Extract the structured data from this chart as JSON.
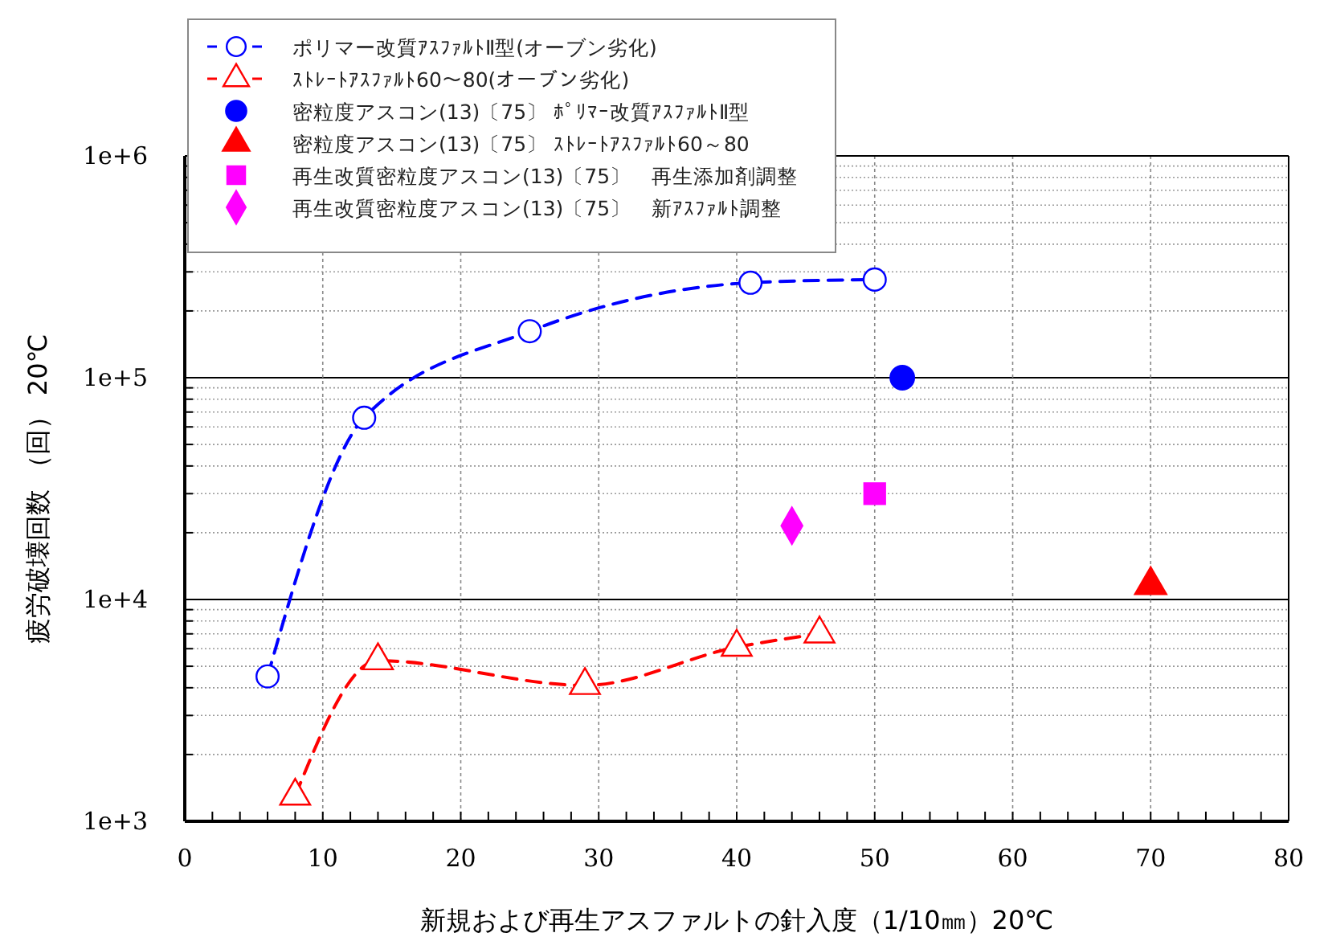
{
  "chart_data": {
    "type": "scatter",
    "xlabel": "新規および再生アスファルトの針入度（1/10㎜）20℃",
    "ylabel": "疲労破壊回数 （回） 20℃",
    "log": "y",
    "grid": true,
    "legend": "top left",
    "xlim": [
      0,
      80
    ],
    "xticks": [
      0,
      {
        "value": 2,
        "label": null
      },
      {
        "value": 4,
        "label": null
      },
      {
        "value": 6,
        "label": null
      },
      {
        "value": 8,
        "label": null
      },
      10,
      {
        "value": 12,
        "label": null
      },
      {
        "value": 14,
        "label": null
      },
      {
        "value": 16,
        "label": null
      },
      {
        "value": 18,
        "label": null
      },
      20,
      {
        "value": 22,
        "label": null
      },
      {
        "value": 24,
        "label": null
      },
      {
        "value": 26,
        "label": null
      },
      {
        "value": 28,
        "label": null
      },
      30,
      {
        "value": 32,
        "label": null
      },
      {
        "value": 34,
        "label": null
      },
      {
        "value": 36,
        "label": null
      },
      {
        "value": 38,
        "label": null
      },
      40,
      {
        "value": 42,
        "label": null
      },
      {
        "value": 44,
        "label": null
      },
      {
        "value": 46,
        "label": null
      },
      {
        "value": 48,
        "label": null
      },
      50,
      {
        "value": 52,
        "label": null
      },
      {
        "value": 54,
        "label": null
      },
      {
        "value": 56,
        "label": null
      },
      {
        "value": 58,
        "label": null
      },
      60,
      {
        "value": 62,
        "label": null
      },
      {
        "value": 64,
        "label": null
      },
      {
        "value": 66,
        "label": null
      },
      {
        "value": 68,
        "label": null
      },
      70,
      {
        "value": 72,
        "label": null
      },
      {
        "value": 74,
        "label": null
      },
      {
        "value": 76,
        "label": null
      },
      {
        "value": 78,
        "label": null
      },
      80
    ],
    "ylim": [
      1000,
      1000000
    ],
    "yticks": [
      {
        "value": 1000,
        "label": "1e+3"
      },
      {
        "value": 2000,
        "label": null
      },
      {
        "value": 3000,
        "label": null
      },
      {
        "value": 4000,
        "label": null
      },
      {
        "value": 5000,
        "label": null
      },
      {
        "value": 6000,
        "label": null
      },
      {
        "value": 7000,
        "label": null
      },
      {
        "value": 8000,
        "label": null
      },
      {
        "value": 9000,
        "label": null
      },
      {
        "value": 10000,
        "label": "1e+4"
      },
      {
        "value": 20000,
        "label": null
      },
      {
        "value": 30000,
        "label": null
      },
      {
        "value": 40000,
        "label": null
      },
      {
        "value": 50000,
        "label": null
      },
      {
        "value": 60000,
        "label": null
      },
      {
        "value": 70000,
        "label": null
      },
      {
        "value": 80000,
        "label": null
      },
      {
        "value": 90000,
        "label": null
      },
      {
        "value": 100000,
        "label": "1e+5"
      },
      {
        "value": 200000,
        "label": null
      },
      {
        "value": 300000,
        "label": null
      },
      {
        "value": 400000,
        "label": null
      },
      {
        "value": 500000,
        "label": null
      },
      {
        "value": 600000,
        "label": null
      },
      {
        "value": 700000,
        "label": null
      },
      {
        "value": 800000,
        "label": null
      },
      {
        "value": 900000,
        "label": null
      },
      {
        "value": 1000000,
        "label": "1e+6"
      }
    ],
    "series": [
      {
        "type": "line",
        "name": "ポリマー改質ｱｽﾌｧﾙﾄⅡ型(オーブン劣化)",
        "color": "#0000ff",
        "marker": "circle",
        "line_style": "dashed",
        "x": [
          6,
          13,
          25,
          41,
          50
        ],
        "values": [
          4500,
          66000,
          162000,
          268000,
          277000
        ]
      },
      {
        "type": "line",
        "name": "ｽﾄﾚｰﾄｱｽﾌｧﾙﾄ60～80(オーブン劣化)",
        "color": "#ff0000",
        "marker": "triangle",
        "line_style": "dashed",
        "x": [
          8,
          14,
          29,
          40,
          46
        ],
        "values": [
          1300,
          5300,
          4100,
          6100,
          7000
        ]
      },
      {
        "type": "scatter",
        "name": "密粒度アスコン(13)〔75〕 ﾎﾟﾘﾏｰ改質ｱｽﾌｧﾙﾄⅡ型",
        "color": "#0000ff",
        "marker": "circle",
        "x": [
          52
        ],
        "values": [
          100000
        ]
      },
      {
        "type": "scatter",
        "name": "密粒度アスコン(13)〔75〕 ｽﾄﾚｰﾄｱｽﾌｧﾙﾄ60～80",
        "color": "#ff0000",
        "marker": "triangle",
        "x": [
          70
        ],
        "values": [
          11600
        ]
      },
      {
        "type": "scatter",
        "name": "再生改質密粒度アスコン(13)〔75〕　再生添加剤調整",
        "color": "#ff00ff",
        "marker": "square",
        "x": [
          50
        ],
        "values": [
          30000
        ]
      },
      {
        "type": "scatter",
        "name": "再生改質密粒度アスコン(13)〔75〕　新ｱｽﾌｧﾙﾄ調整",
        "color": "#ff00ff",
        "marker": "diamond",
        "x": [
          44
        ],
        "values": [
          21500
        ]
      }
    ]
  }
}
